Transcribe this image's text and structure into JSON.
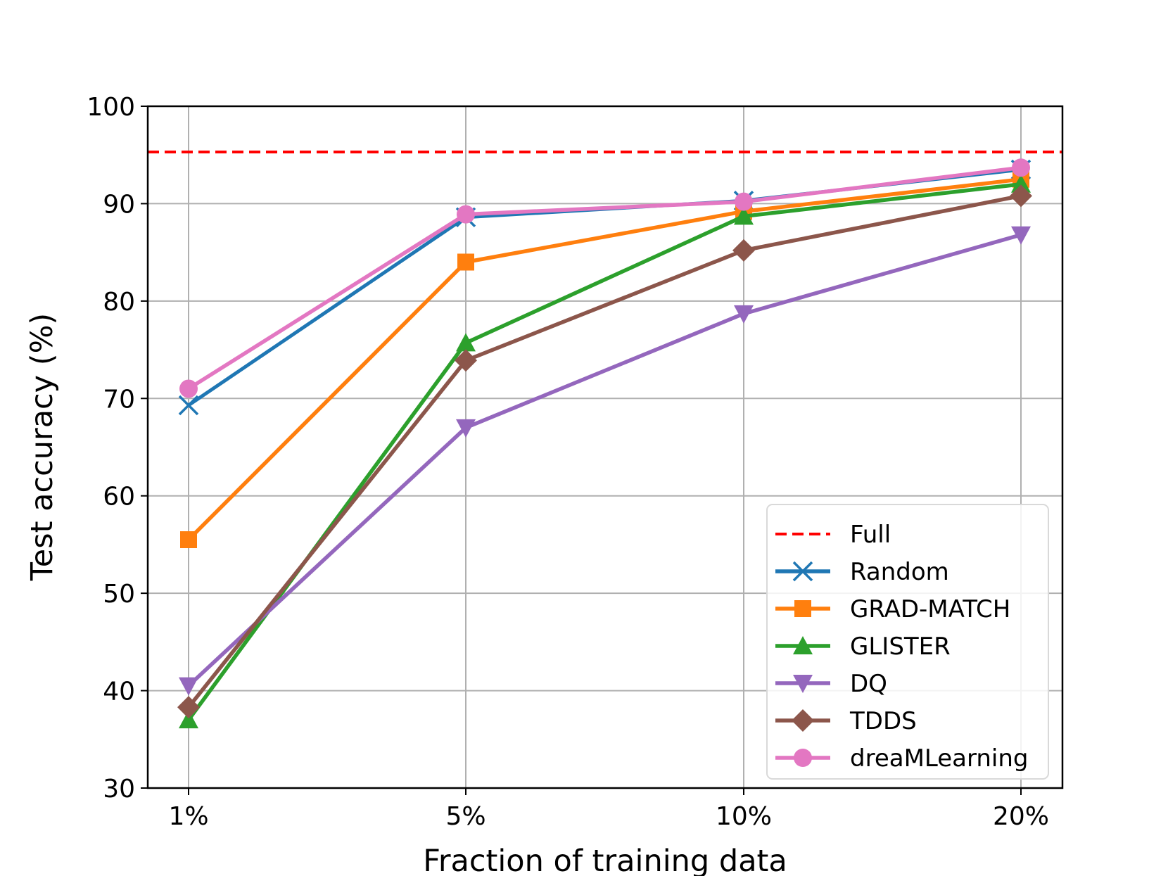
{
  "chart_data": {
    "type": "line",
    "title": "",
    "xlabel": "Fraction of training data",
    "ylabel": "Test accuracy (%)",
    "categories": [
      "1%",
      "5%",
      "10%",
      "20%"
    ],
    "ylim": [
      30,
      100
    ],
    "yticks": [
      "30",
      "40",
      "50",
      "60",
      "70",
      "80",
      "90",
      "100"
    ],
    "grid": true,
    "legend_position": "lower-right",
    "reference_line": {
      "name": "Full",
      "value": 95.3,
      "color": "#ff0000",
      "style": "dashed"
    },
    "series": [
      {
        "name": "Random",
        "color": "#1f77b4",
        "marker": "x",
        "values": [
          69.3,
          88.6,
          90.3,
          93.5
        ]
      },
      {
        "name": "GRAD-MATCH",
        "color": "#ff7f0e",
        "marker": "square",
        "values": [
          55.5,
          84.0,
          89.2,
          92.5
        ]
      },
      {
        "name": "GLISTER",
        "color": "#2ca02c",
        "marker": "triangle-up",
        "values": [
          37.0,
          75.7,
          88.7,
          92.0
        ]
      },
      {
        "name": "DQ",
        "color": "#9467bd",
        "marker": "triangle-down",
        "values": [
          40.5,
          67.0,
          78.7,
          86.8
        ]
      },
      {
        "name": "TDDS",
        "color": "#8c564b",
        "marker": "diamond",
        "values": [
          38.3,
          73.9,
          85.2,
          90.8
        ]
      },
      {
        "name": "dreaMLearning",
        "color": "#e377c2",
        "marker": "circle",
        "values": [
          71.0,
          88.9,
          90.2,
          93.7
        ]
      }
    ]
  }
}
